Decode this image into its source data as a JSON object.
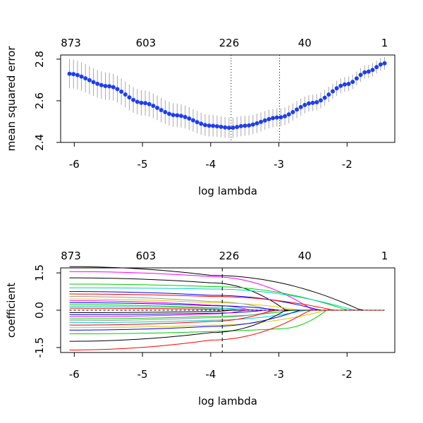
{
  "chart_data": [
    {
      "type": "line",
      "xlabel": "log lambda",
      "ylabel": "mean squared error",
      "xlim": [
        -6.2,
        -1.3
      ],
      "ylim": [
        2.4,
        2.82
      ],
      "x_ticks": [
        {
          "value": -6,
          "label": "-6"
        },
        {
          "value": -5,
          "label": "-5"
        },
        {
          "value": -4,
          "label": "-4"
        },
        {
          "value": -3,
          "label": "-3"
        },
        {
          "value": -2,
          "label": "-2"
        }
      ],
      "y_ticks": [
        {
          "value": 2.4,
          "label": "2.4"
        },
        {
          "value": 2.6,
          "label": "2.6"
        },
        {
          "value": 2.8,
          "label": "2.8"
        }
      ],
      "top_axis": [
        {
          "value": -6.05,
          "label": "873"
        },
        {
          "value": -4.95,
          "label": "603"
        },
        {
          "value": -3.73,
          "label": "226"
        },
        {
          "value": -2.62,
          "label": "40"
        },
        {
          "value": -1.45,
          "label": "1"
        }
      ],
      "vlines_dotted": [
        -3.7,
        -2.99
      ],
      "series": [
        {
          "color": "#1f3fe8",
          "marker": "filled-circle",
          "x": [
            -6.07,
            -5.5,
            -5.0,
            -4.5,
            -4.0,
            -3.7,
            -3.5,
            -3.0,
            -2.5,
            -2.0,
            -1.7,
            -1.45
          ],
          "y": [
            2.73,
            2.67,
            2.59,
            2.53,
            2.48,
            2.47,
            2.48,
            2.52,
            2.59,
            2.68,
            2.74,
            2.78
          ],
          "error_halfwidth_start": 0.07,
          "error_halfwidth_end": 0.03
        }
      ]
    },
    {
      "type": "line",
      "xlabel": "log lambda",
      "ylabel": "coefficient",
      "xlim": [
        -6.2,
        -1.3
      ],
      "ylim": [
        -1.7,
        1.7
      ],
      "x_ticks": [
        {
          "value": -6,
          "label": "-6"
        },
        {
          "value": -5,
          "label": "-5"
        },
        {
          "value": -4,
          "label": "-4"
        },
        {
          "value": -3,
          "label": "-3"
        },
        {
          "value": -2,
          "label": "-2"
        }
      ],
      "y_ticks": [
        {
          "value": -1.5,
          "label": "-1.5"
        },
        {
          "value": 0.0,
          "label": "0.0"
        },
        {
          "value": 1.5,
          "label": "1.5"
        }
      ],
      "top_axis": [
        {
          "value": -6.05,
          "label": "873"
        },
        {
          "value": -4.95,
          "label": "603"
        },
        {
          "value": -3.73,
          "label": "226"
        },
        {
          "value": -2.62,
          "label": "40"
        },
        {
          "value": -1.45,
          "label": "1"
        }
      ],
      "vline_dashed": -3.83,
      "path_x_start": -6.07,
      "path_x_end": -1.45,
      "series": [
        {
          "color": "#000000",
          "start": 1.75,
          "zero_at": -1.8,
          "mid": -4.0,
          "mid_value": 1.4
        },
        {
          "color": "#ff00ff",
          "start": 1.55,
          "zero_at": -2.5,
          "mid": -4.0,
          "mid_value": 1.35
        },
        {
          "color": "#000000",
          "start": 1.3,
          "zero_at": -2.9,
          "mid": -4.0,
          "mid_value": 1.1
        },
        {
          "color": "#00cd00",
          "start": 1.05,
          "zero_at": -2.0,
          "mid": -4.0,
          "mid_value": 0.95
        },
        {
          "color": "#00cdcd",
          "start": 0.9,
          "zero_at": -1.9,
          "mid": -4.0,
          "mid_value": 0.85
        },
        {
          "color": "#0000ff",
          "start": 0.75,
          "zero_at": -2.4,
          "mid": -4.0,
          "mid_value": 0.6
        },
        {
          "color": "#ff0000",
          "start": 0.65,
          "zero_at": -2.2,
          "mid": -4.0,
          "mid_value": 0.55
        },
        {
          "color": "#999999",
          "start": 0.55,
          "zero_at": -3.1,
          "mid": -4.0,
          "mid_value": 0.35
        },
        {
          "color": "#cdcd00",
          "start": 0.45,
          "zero_at": -2.7,
          "mid": -4.0,
          "mid_value": 0.3
        },
        {
          "color": "#ff00ff",
          "start": 0.38,
          "zero_at": -3.4,
          "mid": -4.0,
          "mid_value": 0.2
        },
        {
          "color": "#0000ff",
          "start": 0.3,
          "zero_at": -3.0,
          "mid": -4.0,
          "mid_value": 0.18
        },
        {
          "color": "#00cd00",
          "start": 0.22,
          "zero_at": -3.6,
          "mid": -4.0,
          "mid_value": 0.1
        },
        {
          "color": "#00cdcd",
          "start": 0.15,
          "zero_at": -3.3,
          "mid": -4.0,
          "mid_value": 0.08
        },
        {
          "color": "#ff0000",
          "start": 0.08,
          "zero_at": -3.8,
          "mid": -4.0,
          "mid_value": 0.04
        },
        {
          "color": "#000000",
          "start": -0.1,
          "zero_at": -3.7,
          "mid": -4.0,
          "mid_value": -0.05
        },
        {
          "color": "#0000ff",
          "start": -0.18,
          "zero_at": -3.2,
          "mid": -4.0,
          "mid_value": -0.12
        },
        {
          "color": "#ff00ff",
          "start": -0.26,
          "zero_at": -3.5,
          "mid": -4.0,
          "mid_value": -0.15
        },
        {
          "color": "#00cd00",
          "start": -0.35,
          "zero_at": -2.8,
          "mid": -4.0,
          "mid_value": -0.25
        },
        {
          "color": "#999999",
          "start": -0.42,
          "zero_at": -3.0,
          "mid": -4.0,
          "mid_value": -0.3
        },
        {
          "color": "#00cdcd",
          "start": -0.5,
          "zero_at": -2.6,
          "mid": -4.0,
          "mid_value": -0.4
        },
        {
          "color": "#ff0000",
          "start": -0.6,
          "zero_at": -3.1,
          "mid": -4.0,
          "mid_value": -0.45
        },
        {
          "color": "#cdcd00",
          "start": -0.7,
          "zero_at": -2.3,
          "mid": -4.0,
          "mid_value": -0.6
        },
        {
          "color": "#0000ff",
          "start": -0.8,
          "zero_at": -2.7,
          "mid": -4.0,
          "mid_value": -0.65
        },
        {
          "color": "#00cd00",
          "start": -0.95,
          "zero_at": -2.3,
          "mid": -3.0,
          "mid_value": -0.75
        },
        {
          "color": "#000000",
          "start": -1.25,
          "zero_at": -2.9,
          "mid": -4.0,
          "mid_value": -0.9
        },
        {
          "color": "#ff0000",
          "start": -1.6,
          "zero_at": -2.55,
          "mid": -4.0,
          "mid_value": -1.2
        }
      ]
    }
  ]
}
